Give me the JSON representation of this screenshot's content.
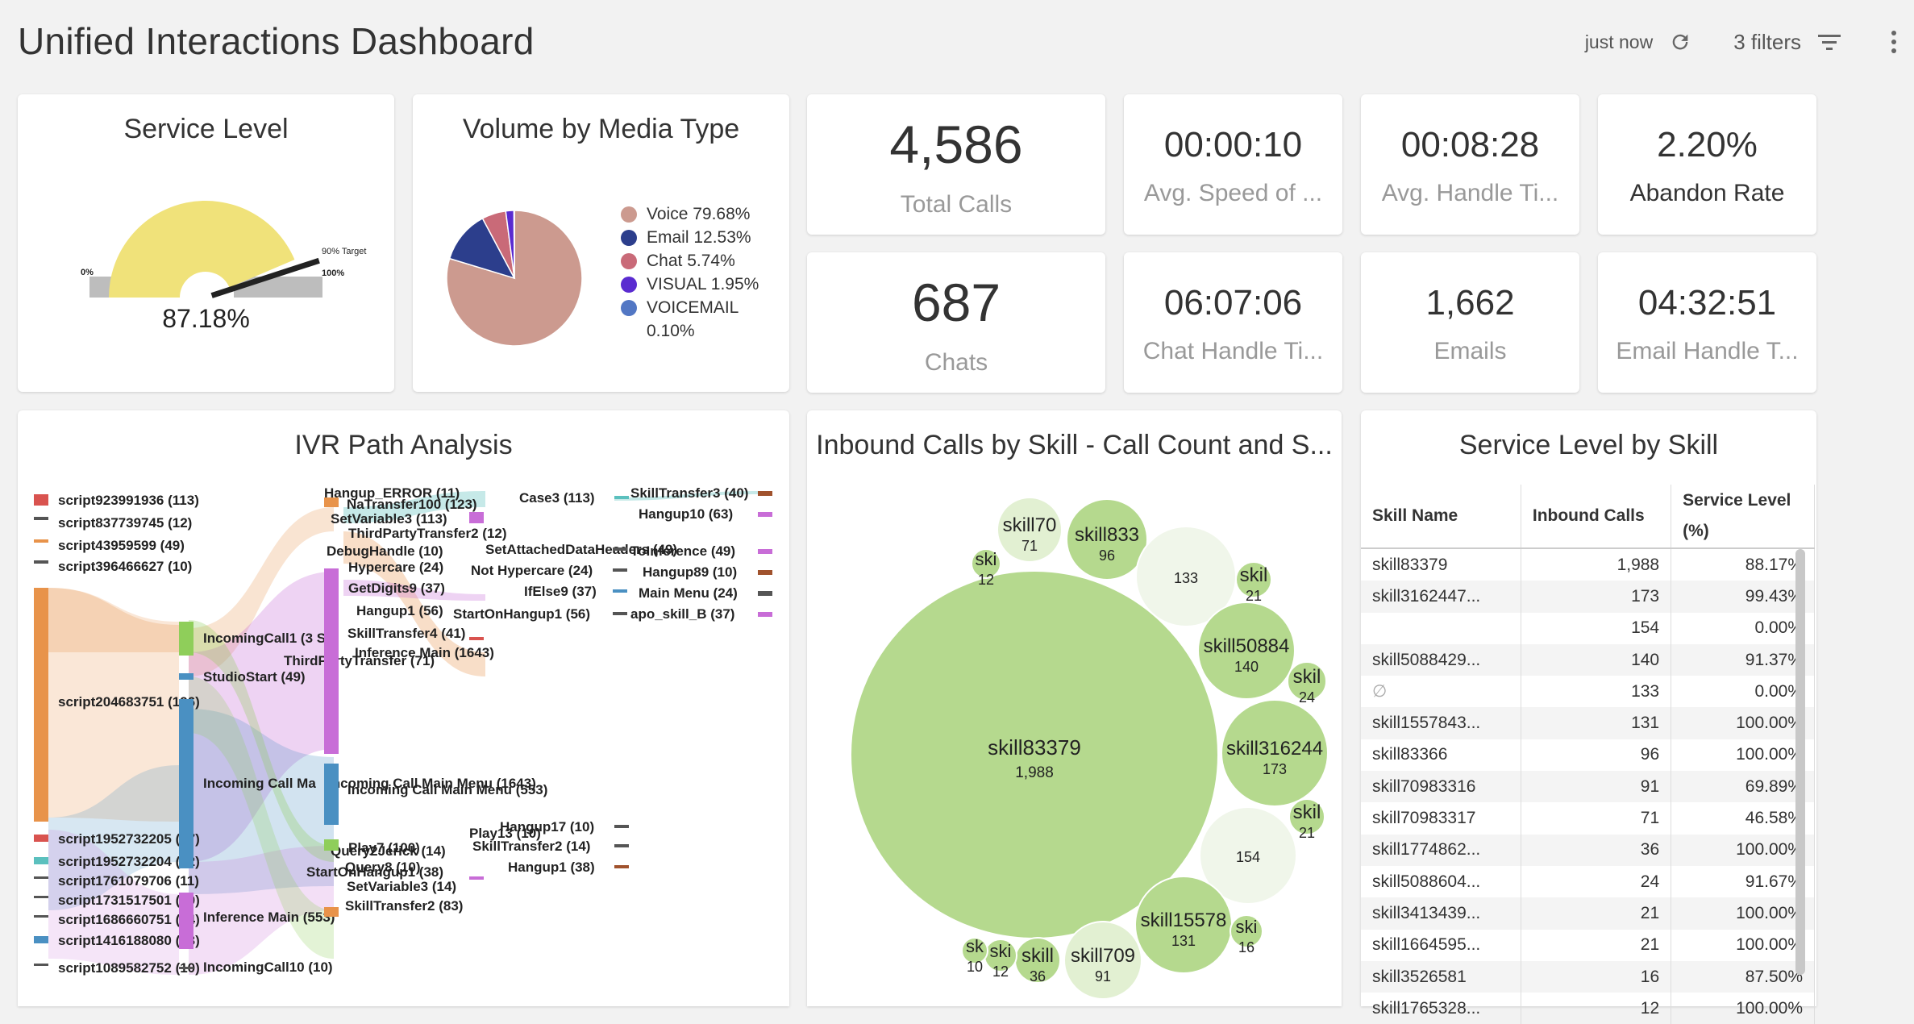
{
  "header": {
    "title": "Unified Interactions Dashboard",
    "refresh_text": "just now",
    "filters_label": "3 filters",
    "icons": {
      "refresh": "refresh-icon",
      "filter": "filter-lines-icon",
      "menu": "vertical-dots-icon"
    }
  },
  "service_level": {
    "title": "Service Level",
    "value": "87.18%",
    "min_label": "0%",
    "max_label": "100%",
    "target_label": "90% Target",
    "gauge_fraction": 0.8718,
    "target_fraction": 0.9,
    "colors": {
      "fill": "#f0e27a",
      "base": "#bdbdbd",
      "needle": "#222222"
    }
  },
  "volume_by_media": {
    "title": "Volume by Media Type",
    "legend": [
      {
        "name": "Voice",
        "pct_label": "79.68%",
        "color": "#cc9a8f"
      },
      {
        "name": "Email",
        "pct_label": "12.53%",
        "color": "#2c3e8c"
      },
      {
        "name": "Chat",
        "pct_label": "5.74%",
        "color": "#c96a78"
      },
      {
        "name": "VISUAL",
        "pct_label": "1.95%",
        "color": "#5a2bd0"
      },
      {
        "name": "VOICEMAIL",
        "pct_label": "0.10%",
        "color": "#5277c4"
      }
    ]
  },
  "kpis": {
    "total_calls": {
      "value": "4,586",
      "label": "Total Calls"
    },
    "avg_speed": {
      "value": "00:00:10",
      "label": "Avg. Speed of ..."
    },
    "avg_handle": {
      "value": "00:08:28",
      "label": "Avg. Handle Ti..."
    },
    "abandon_rate": {
      "value": "2.20%",
      "label": "Abandon Rate"
    },
    "chats": {
      "value": "687",
      "label": "Chats"
    },
    "chat_handle": {
      "value": "06:07:06",
      "label": "Chat Handle Ti..."
    },
    "emails": {
      "value": "1,662",
      "label": "Emails"
    },
    "email_handle": {
      "value": "04:32:51",
      "label": "Email Handle T..."
    }
  },
  "ivr": {
    "title": "IVR Path Analysis",
    "col1_top": [
      {
        "label": "script923991936 (113)",
        "color": "#d9534f"
      },
      {
        "label": "script837739745 (12)",
        "color": "#555555"
      },
      {
        "label": "script43959599 (49)",
        "color": "#e8934a"
      },
      {
        "label": "script396466627 (10)",
        "color": "#555555"
      }
    ],
    "col1_main": {
      "label": "script204683751 (196)",
      "color": "#e8934a"
    },
    "col1_bottom": [
      {
        "label": "script1952732205 (37)",
        "color": "#d9534f"
      },
      {
        "label": "script1952732204 (52)",
        "color": "#5bc0be"
      },
      {
        "label": "script1761079706 (11)",
        "color": "#555555"
      },
      {
        "label": "script1731517501 (10)",
        "color": "#555555"
      },
      {
        "label": "script1686660751 (14)",
        "color": "#555555"
      },
      {
        "label": "script1416188080 (73)",
        "color": "#4a90c2"
      },
      {
        "label": "script1089582752 (10)",
        "color": "#555555"
      }
    ],
    "col2": [
      {
        "label": "IncomingCall1 (3 S",
        "color": "#8fce5a"
      },
      {
        "label": "StudioStart (49)",
        "color": "#4a90c2"
      },
      {
        "label": "Incoming Call Ma",
        "color": "#4a90c2"
      },
      {
        "label": "Inference Main (553)",
        "color": "#c86dd7"
      },
      {
        "label": "IncomingCall10 (10)",
        "color": "#555555"
      }
    ],
    "col3": [
      {
        "label": "Hangup_ERROR (11)",
        "color": "#e8934a"
      },
      {
        "label": "NaTransfer100 (123)",
        "color": "#e8934a"
      },
      {
        "label": "SetVariable3 (113)",
        "color": "#c86dd7"
      },
      {
        "label": "ThirdPartyTransfer2 (12)",
        "color": "#555555"
      },
      {
        "label": "DebugHandle (10)",
        "color": "#c86dd7"
      },
      {
        "label": "Hypercare (24)",
        "color": "#555555"
      },
      {
        "label": "GetDigits9 (37)",
        "color": "#555555"
      },
      {
        "label": "Hangup1 (56)",
        "color": "#555555"
      },
      {
        "label": "SkillTransfer4 (41)",
        "color": "#d9534f"
      },
      {
        "label": "ThirdPartyTransfer (71)",
        "color": "#555555"
      },
      {
        "label": "Inference Main (1643)",
        "color": "#c86dd7"
      },
      {
        "label": "Incoming Call Main Menu (1643)",
        "color": "#c86dd7"
      },
      {
        "label": "Incoming Call Main Menu (553)",
        "color": "#4a90c2"
      },
      {
        "label": "Play13 (10)",
        "color": "#555555"
      },
      {
        "label": "Play7 (100)",
        "color": "#8fce5a"
      },
      {
        "label": "Query2Jerick (14)",
        "color": "#555555"
      },
      {
        "label": "Query8 (10)",
        "color": "#555555"
      },
      {
        "label": "StartOnHangup1 (38)",
        "color": "#555555"
      },
      {
        "label": "SetVariable3 (14)",
        "color": "#555555"
      },
      {
        "label": "SkillTransfer2 (83)",
        "color": "#e8934a"
      }
    ],
    "col4": [
      {
        "label": "Case3 (113)",
        "color": "#5bc0be"
      },
      {
        "label": "SetAttachedDataHeaders (49)",
        "color": "#555555"
      },
      {
        "label": "Not Hypercare (24)",
        "color": "#555555"
      },
      {
        "label": "IfElse9 (37)",
        "color": "#4a90c2"
      },
      {
        "label": "StartOnHangup1 (56)",
        "color": "#555555"
      },
      {
        "label": "Hangup17 (10)",
        "color": "#555555"
      },
      {
        "label": "SkillTransfer2 (14)",
        "color": "#555555"
      },
      {
        "label": "Hangup1 (38)",
        "color": "#a0522d"
      }
    ],
    "col5": [
      {
        "label": "SkillTransfer3 (40)",
        "color": "#a0522d"
      },
      {
        "label": "Hangup10 (63)",
        "color": "#c86dd7"
      },
      {
        "label": "ToInference (49)",
        "color": "#c86dd7"
      },
      {
        "label": "Hangup89 (10)",
        "color": "#a0522d"
      },
      {
        "label": "Main Menu (24)",
        "color": "#555555"
      },
      {
        "label": "apo_skill_B (37)",
        "color": "#c86dd7"
      }
    ]
  },
  "bubbles": {
    "title": "Inbound Calls by Skill - Call Count and S...",
    "color_main": "#b5d98e",
    "color_light": "#e2f0d2",
    "items": [
      {
        "name": "skill83379",
        "count": "1,988",
        "value": 1988,
        "shade": "main"
      },
      {
        "name": "skill70",
        "count": "71",
        "value": 71,
        "shade": "light"
      },
      {
        "name": "skill833",
        "count": "96",
        "value": 96,
        "shade": "main"
      },
      {
        "name": "ski",
        "count": "12",
        "value": 12,
        "shade": "main"
      },
      {
        "name": "",
        "count": "133",
        "value": 133,
        "shade": "pale"
      },
      {
        "name": "skil",
        "count": "21",
        "value": 21,
        "shade": "main"
      },
      {
        "name": "skill50884",
        "count": "140",
        "value": 140,
        "shade": "main"
      },
      {
        "name": "skil",
        "count": "24",
        "value": 24,
        "shade": "main"
      },
      {
        "name": "skill316244",
        "count": "173",
        "value": 173,
        "shade": "main"
      },
      {
        "name": "skil",
        "count": "21",
        "value": 21,
        "shade": "main"
      },
      {
        "name": "",
        "count": "154",
        "value": 154,
        "shade": "pale"
      },
      {
        "name": "skill15578",
        "count": "131",
        "value": 131,
        "shade": "main"
      },
      {
        "name": "ski",
        "count": "16",
        "value": 16,
        "shade": "main"
      },
      {
        "name": "skill709",
        "count": "91",
        "value": 91,
        "shade": "light"
      },
      {
        "name": "skill",
        "count": "36",
        "value": 36,
        "shade": "main"
      },
      {
        "name": "ski",
        "count": "12",
        "value": 12,
        "shade": "main"
      },
      {
        "name": "sk",
        "count": "10",
        "value": 10,
        "shade": "main"
      }
    ]
  },
  "skill_table": {
    "title": "Service Level by Skill",
    "columns": [
      "Skill Name",
      "Inbound Calls",
      "Service Level (%)"
    ],
    "rows": [
      [
        "skill83379",
        "1,988",
        "88.17%"
      ],
      [
        "skill3162447...",
        "173",
        "99.43%"
      ],
      [
        "",
        "154",
        "0.00%"
      ],
      [
        "skill5088429...",
        "140",
        "91.37%"
      ],
      [
        "∅",
        "133",
        "0.00%"
      ],
      [
        "skill1557843...",
        "131",
        "100.00%"
      ],
      [
        "skill83366",
        "96",
        "100.00%"
      ],
      [
        "skill70983316",
        "91",
        "69.89%"
      ],
      [
        "skill70983317",
        "71",
        "46.58%"
      ],
      [
        "skill1774862...",
        "36",
        "100.00%"
      ],
      [
        "skill5088604...",
        "24",
        "91.67%"
      ],
      [
        "skill3413439...",
        "21",
        "100.00%"
      ],
      [
        "skill1664595...",
        "21",
        "100.00%"
      ],
      [
        "skill3526581",
        "16",
        "87.50%"
      ],
      [
        "skill1765328...",
        "12",
        "100.00%"
      ]
    ]
  }
}
